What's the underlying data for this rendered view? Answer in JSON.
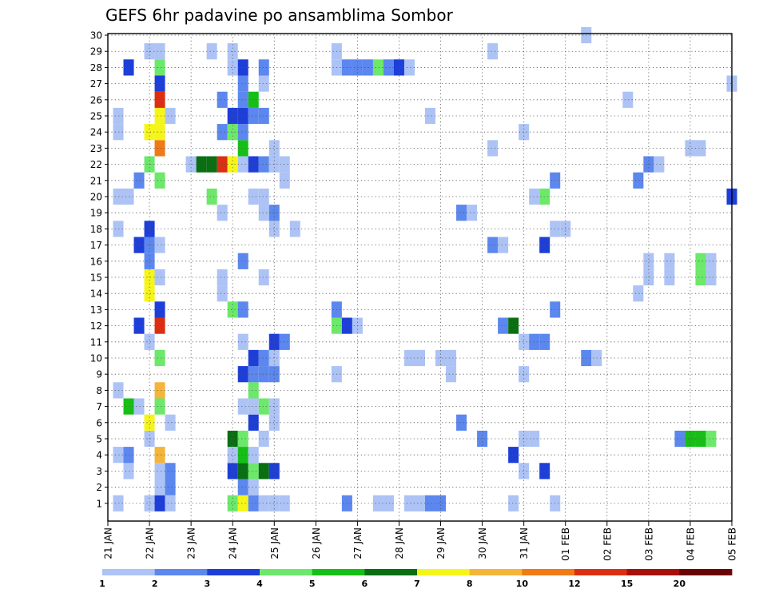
{
  "chart_data": {
    "type": "heatmap",
    "title": "GEFS 6hr padavine po ansamblima Sombor",
    "xlabel": "",
    "ylabel": "",
    "x_tick_labels": [
      "21 JAN",
      "22 JAN",
      "23 JAN",
      "24 JAN",
      "25 JAN",
      "26 JAN",
      "27 JAN",
      "28 JAN",
      "29 JAN",
      "30 JAN",
      "31 JAN",
      "01 FEB",
      "02 FEB",
      "03 FEB",
      "04 FEB",
      "05 FEB"
    ],
    "y_tick_labels": [
      1,
      2,
      3,
      4,
      5,
      6,
      7,
      8,
      9,
      10,
      11,
      12,
      13,
      14,
      15,
      16,
      17,
      18,
      19,
      20,
      21,
      22,
      23,
      24,
      25,
      26,
      27,
      28,
      29,
      30
    ],
    "x_unit": "6-hour steps from 21 JAN 00Z",
    "xlim": [
      0,
      60
    ],
    "ylim": [
      0,
      30
    ],
    "grid": true,
    "legend": {
      "position": "bottom",
      "labels": [
        "1",
        "2",
        "3",
        "4",
        "5",
        "6",
        "7",
        "8",
        "10",
        "12",
        "15",
        "20"
      ],
      "colors": [
        "#adc3f5",
        "#5b87ee",
        "#1e3ed8",
        "#6ce86a",
        "#16bf16",
        "#0a6e12",
        "#f5f51a",
        "#f5b43a",
        "#ef7a16",
        "#db2e12",
        "#a6100c",
        "#6a0404"
      ]
    },
    "cells": [
      [
        1,
        1,
        1
      ],
      [
        4,
        1,
        1
      ],
      [
        5,
        1,
        3
      ],
      [
        6,
        1,
        1
      ],
      [
        12,
        1,
        4
      ],
      [
        13,
        1,
        7
      ],
      [
        14,
        1,
        2
      ],
      [
        15,
        1,
        1
      ],
      [
        16,
        1,
        1
      ],
      [
        17,
        1,
        1
      ],
      [
        23,
        1,
        2
      ],
      [
        26,
        1,
        1
      ],
      [
        27,
        1,
        1
      ],
      [
        29,
        1,
        1
      ],
      [
        30,
        1,
        1
      ],
      [
        31,
        1,
        2
      ],
      [
        32,
        1,
        2
      ],
      [
        39,
        1,
        1
      ],
      [
        43,
        1,
        1
      ],
      [
        5,
        2,
        1
      ],
      [
        6,
        2,
        2
      ],
      [
        13,
        2,
        2
      ],
      [
        14,
        2,
        1
      ],
      [
        2,
        3,
        1
      ],
      [
        5,
        3,
        1
      ],
      [
        6,
        3,
        2
      ],
      [
        12,
        3,
        3
      ],
      [
        13,
        3,
        6
      ],
      [
        14,
        3,
        4
      ],
      [
        15,
        3,
        6
      ],
      [
        16,
        3,
        3
      ],
      [
        40,
        3,
        1
      ],
      [
        42,
        3,
        3
      ],
      [
        1,
        4,
        1
      ],
      [
        2,
        4,
        2
      ],
      [
        5,
        4,
        8
      ],
      [
        12,
        4,
        1
      ],
      [
        13,
        4,
        5
      ],
      [
        14,
        4,
        1
      ],
      [
        39,
        4,
        3
      ],
      [
        4,
        5,
        1
      ],
      [
        12,
        5,
        6
      ],
      [
        13,
        5,
        4
      ],
      [
        15,
        5,
        1
      ],
      [
        36,
        5,
        2
      ],
      [
        40,
        5,
        1
      ],
      [
        41,
        5,
        1
      ],
      [
        55,
        5,
        2
      ],
      [
        56,
        5,
        5
      ],
      [
        57,
        5,
        5
      ],
      [
        58,
        5,
        4
      ],
      [
        4,
        6,
        7
      ],
      [
        6,
        6,
        1
      ],
      [
        14,
        6,
        3
      ],
      [
        16,
        6,
        1
      ],
      [
        34,
        6,
        2
      ],
      [
        2,
        7,
        5
      ],
      [
        3,
        7,
        1
      ],
      [
        5,
        7,
        4
      ],
      [
        13,
        7,
        1
      ],
      [
        14,
        7,
        1
      ],
      [
        15,
        7,
        4
      ],
      [
        16,
        7,
        1
      ],
      [
        1,
        8,
        1
      ],
      [
        5,
        8,
        8
      ],
      [
        14,
        8,
        4
      ],
      [
        13,
        9,
        3
      ],
      [
        14,
        9,
        2
      ],
      [
        15,
        9,
        2
      ],
      [
        16,
        9,
        2
      ],
      [
        22,
        9,
        1
      ],
      [
        33,
        9,
        1
      ],
      [
        40,
        9,
        1
      ],
      [
        5,
        10,
        4
      ],
      [
        14,
        10,
        3
      ],
      [
        15,
        10,
        2
      ],
      [
        16,
        10,
        1
      ],
      [
        29,
        10,
        1
      ],
      [
        30,
        10,
        1
      ],
      [
        32,
        10,
        1
      ],
      [
        33,
        10,
        1
      ],
      [
        46,
        10,
        2
      ],
      [
        47,
        10,
        1
      ],
      [
        4,
        11,
        1
      ],
      [
        13,
        11,
        1
      ],
      [
        16,
        11,
        3
      ],
      [
        17,
        11,
        2
      ],
      [
        40,
        11,
        1
      ],
      [
        41,
        11,
        2
      ],
      [
        42,
        11,
        2
      ],
      [
        3,
        12,
        3
      ],
      [
        5,
        12,
        10
      ],
      [
        22,
        12,
        4
      ],
      [
        23,
        12,
        3
      ],
      [
        24,
        12,
        1
      ],
      [
        38,
        12,
        2
      ],
      [
        39,
        12,
        6
      ],
      [
        5,
        13,
        3
      ],
      [
        12,
        13,
        4
      ],
      [
        13,
        13,
        2
      ],
      [
        22,
        13,
        2
      ],
      [
        43,
        13,
        2
      ],
      [
        4,
        14,
        7
      ],
      [
        11,
        14,
        1
      ],
      [
        51,
        14,
        1
      ],
      [
        4,
        15,
        7
      ],
      [
        5,
        15,
        1
      ],
      [
        11,
        15,
        1
      ],
      [
        15,
        15,
        1
      ],
      [
        52,
        15,
        1
      ],
      [
        54,
        15,
        1
      ],
      [
        57,
        15,
        4
      ],
      [
        58,
        15,
        1
      ],
      [
        4,
        16,
        2
      ],
      [
        13,
        16,
        2
      ],
      [
        52,
        16,
        1
      ],
      [
        54,
        16,
        1
      ],
      [
        57,
        16,
        4
      ],
      [
        58,
        16,
        1
      ],
      [
        3,
        17,
        3
      ],
      [
        4,
        17,
        2
      ],
      [
        5,
        17,
        1
      ],
      [
        37,
        17,
        2
      ],
      [
        38,
        17,
        1
      ],
      [
        42,
        17,
        3
      ],
      [
        1,
        18,
        1
      ],
      [
        4,
        18,
        3
      ],
      [
        16,
        18,
        1
      ],
      [
        18,
        18,
        1
      ],
      [
        43,
        18,
        1
      ],
      [
        44,
        18,
        1
      ],
      [
        11,
        19,
        1
      ],
      [
        15,
        19,
        1
      ],
      [
        16,
        19,
        2
      ],
      [
        34,
        19,
        2
      ],
      [
        35,
        19,
        1
      ],
      [
        1,
        20,
        1
      ],
      [
        2,
        20,
        1
      ],
      [
        10,
        20,
        4
      ],
      [
        14,
        20,
        1
      ],
      [
        15,
        20,
        1
      ],
      [
        41,
        20,
        1
      ],
      [
        42,
        20,
        4
      ],
      [
        60,
        20,
        3
      ],
      [
        3,
        21,
        2
      ],
      [
        5,
        21,
        4
      ],
      [
        17,
        21,
        1
      ],
      [
        43,
        21,
        2
      ],
      [
        51,
        21,
        2
      ],
      [
        4,
        22,
        4
      ],
      [
        8,
        22,
        1
      ],
      [
        9,
        22,
        6
      ],
      [
        10,
        22,
        6
      ],
      [
        11,
        22,
        10
      ],
      [
        12,
        22,
        7
      ],
      [
        13,
        22,
        1
      ],
      [
        14,
        22,
        3
      ],
      [
        15,
        22,
        2
      ],
      [
        16,
        22,
        1
      ],
      [
        17,
        22,
        1
      ],
      [
        52,
        22,
        2
      ],
      [
        53,
        22,
        1
      ],
      [
        5,
        23,
        9
      ],
      [
        13,
        23,
        5
      ],
      [
        16,
        23,
        1
      ],
      [
        37,
        23,
        1
      ],
      [
        56,
        23,
        1
      ],
      [
        57,
        23,
        1
      ],
      [
        1,
        24,
        1
      ],
      [
        4,
        24,
        7
      ],
      [
        5,
        24,
        7
      ],
      [
        11,
        24,
        2
      ],
      [
        12,
        24,
        4
      ],
      [
        13,
        24,
        2
      ],
      [
        40,
        24,
        1
      ],
      [
        1,
        25,
        1
      ],
      [
        5,
        25,
        7
      ],
      [
        6,
        25,
        1
      ],
      [
        12,
        25,
        3
      ],
      [
        13,
        25,
        3
      ],
      [
        14,
        25,
        2
      ],
      [
        15,
        25,
        2
      ],
      [
        31,
        25,
        1
      ],
      [
        5,
        26,
        10
      ],
      [
        11,
        26,
        2
      ],
      [
        13,
        26,
        2
      ],
      [
        14,
        26,
        5
      ],
      [
        50,
        26,
        1
      ],
      [
        5,
        27,
        3
      ],
      [
        13,
        27,
        2
      ],
      [
        15,
        27,
        1
      ],
      [
        60,
        27,
        1
      ],
      [
        2,
        28,
        3
      ],
      [
        5,
        28,
        4
      ],
      [
        12,
        28,
        1
      ],
      [
        13,
        28,
        3
      ],
      [
        15,
        28,
        2
      ],
      [
        22,
        28,
        1
      ],
      [
        23,
        28,
        2
      ],
      [
        24,
        28,
        2
      ],
      [
        25,
        28,
        2
      ],
      [
        26,
        28,
        4
      ],
      [
        27,
        28,
        2
      ],
      [
        28,
        28,
        3
      ],
      [
        29,
        28,
        1
      ],
      [
        4,
        29,
        1
      ],
      [
        5,
        29,
        1
      ],
      [
        10,
        29,
        1
      ],
      [
        12,
        29,
        1
      ],
      [
        22,
        29,
        1
      ],
      [
        37,
        29,
        1
      ],
      [
        46,
        30,
        1
      ]
    ]
  }
}
